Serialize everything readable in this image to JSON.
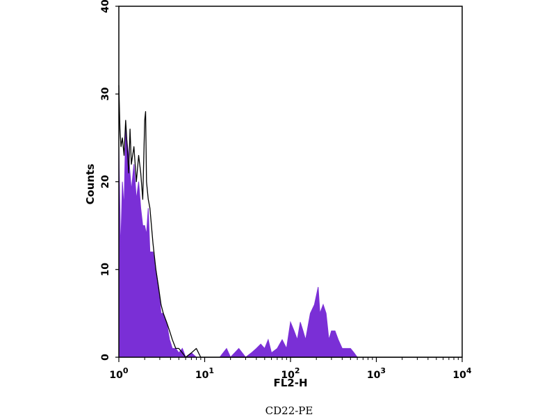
{
  "caption": "CD22-PE",
  "chart_data": {
    "type": "histogram",
    "title": "",
    "xlabel": "FL2-H",
    "ylabel": "Counts",
    "x_scale": "log",
    "xlim": [
      1,
      10000
    ],
    "ylim": [
      0,
      40
    ],
    "x_ticks": [
      {
        "value": 1,
        "label_base": "10",
        "label_exp": "0"
      },
      {
        "value": 10,
        "label_base": "10",
        "label_exp": "1"
      },
      {
        "value": 100,
        "label_base": "10",
        "label_exp": "2"
      },
      {
        "value": 1000,
        "label_base": "10",
        "label_exp": "3"
      },
      {
        "value": 10000,
        "label_base": "10",
        "label_exp": "4"
      }
    ],
    "y_ticks": [
      {
        "value": 0,
        "label": "0"
      },
      {
        "value": 10,
        "label": "10"
      },
      {
        "value": 20,
        "label": "20"
      },
      {
        "value": 30,
        "label": "30"
      },
      {
        "value": 40,
        "label": "40"
      }
    ],
    "grid": false,
    "legend": "none",
    "series": [
      {
        "style": "filled",
        "color": "#7a2fd6",
        "x": [
          1.0,
          1.05,
          1.1,
          1.15,
          1.2,
          1.3,
          1.4,
          1.5,
          1.6,
          1.7,
          1.8,
          1.9,
          2.0,
          2.1,
          2.2,
          2.3,
          2.5,
          2.7,
          2.9,
          3.1,
          3.3,
          3.6,
          3.9,
          4.2,
          4.6,
          5.0,
          5.5,
          6.0,
          7.0,
          8.0,
          9.0,
          10,
          12,
          15,
          18,
          20,
          25,
          30,
          35,
          40,
          45,
          50,
          55,
          60,
          70,
          80,
          90,
          100,
          110,
          120,
          130,
          140,
          150,
          170,
          190,
          210,
          220,
          240,
          260,
          280,
          300,
          330,
          360,
          400,
          450,
          500,
          550,
          600,
          1000,
          10000
        ],
        "y": [
          24,
          12,
          20,
          17,
          26,
          23,
          19,
          22,
          18,
          20,
          17,
          15,
          15,
          14,
          17,
          12,
          12,
          10,
          8,
          5,
          5,
          4,
          2,
          1,
          1,
          0.5,
          1,
          0,
          0.5,
          0,
          0,
          0,
          0,
          0,
          1,
          0,
          1,
          0,
          0.5,
          1,
          1.5,
          1,
          2,
          0.5,
          1,
          2,
          1,
          4,
          3,
          2,
          4,
          3,
          2,
          5,
          6,
          8,
          5,
          6,
          5,
          2,
          3,
          3,
          2,
          1,
          1,
          1,
          0.5,
          0,
          0,
          0
        ]
      },
      {
        "style": "line",
        "color": "#000000",
        "x": [
          1.0,
          1.03,
          1.06,
          1.1,
          1.15,
          1.2,
          1.25,
          1.3,
          1.35,
          1.4,
          1.5,
          1.6,
          1.7,
          1.8,
          1.9,
          2.0,
          2.05,
          2.1,
          2.2,
          2.3,
          2.5,
          2.7,
          2.9,
          3.1,
          3.3,
          3.6,
          3.9,
          4.2,
          4.6,
          5.0,
          5.5,
          6.0,
          7.0,
          8.0,
          9.0,
          10,
          10000
        ],
        "y": [
          31,
          26,
          24,
          25,
          23,
          27,
          24,
          21,
          26,
          22,
          24,
          20,
          23,
          21,
          18,
          27,
          28,
          20,
          18,
          17,
          13,
          10,
          8,
          6,
          5,
          4,
          3,
          2,
          1,
          1,
          0.5,
          0,
          0.5,
          1,
          0,
          0,
          0
        ]
      }
    ]
  }
}
